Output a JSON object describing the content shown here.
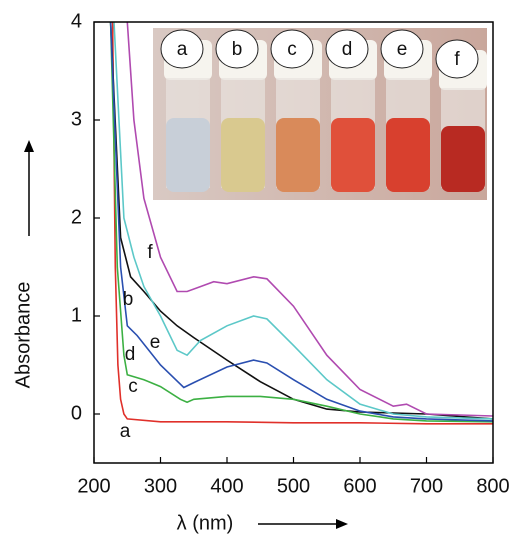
{
  "chart_data": {
    "type": "line",
    "x_label": "λ (nm)",
    "y_label": "Absorbance",
    "xlim": [
      200,
      800
    ],
    "xticks": [
      200,
      300,
      400,
      500,
      600,
      700,
      800
    ],
    "ylim": [
      -0.5,
      4
    ],
    "yticks": [
      0,
      1,
      2,
      3,
      4
    ],
    "series": [
      {
        "name": "a",
        "color": "#e0302a",
        "x": [
          228,
          232,
          236,
          240,
          245,
          250,
          300,
          400,
          500,
          600,
          700,
          800
        ],
        "values": [
          4,
          1.5,
          0.5,
          0.15,
          0,
          -0.05,
          -0.08,
          -0.08,
          -0.09,
          -0.09,
          -0.1,
          -0.1
        ]
      },
      {
        "name": "b",
        "color": "#111111",
        "x": [
          225,
          240,
          255,
          275,
          300,
          325,
          350,
          400,
          450,
          500,
          550,
          600,
          700,
          800
        ],
        "values": [
          4,
          1.8,
          1.4,
          1.25,
          1.05,
          0.9,
          0.78,
          0.55,
          0.33,
          0.15,
          0.05,
          0.02,
          0,
          -0.05
        ]
      },
      {
        "name": "c",
        "color": "#3cb043",
        "x": [
          225,
          235,
          245,
          250,
          275,
          300,
          330,
          340,
          350,
          400,
          450,
          500,
          550,
          600,
          650,
          700,
          800
        ],
        "values": [
          4,
          1.5,
          0.6,
          0.4,
          0.35,
          0.28,
          0.15,
          0.12,
          0.15,
          0.18,
          0.18,
          0.15,
          0.08,
          0,
          -0.05,
          -0.07,
          -0.08
        ]
      },
      {
        "name": "d",
        "color": "#2a4fb0",
        "x": [
          225,
          240,
          250,
          265,
          300,
          335,
          350,
          400,
          440,
          460,
          500,
          550,
          600,
          650,
          700,
          800
        ],
        "values": [
          4,
          1.5,
          0.9,
          0.8,
          0.5,
          0.27,
          0.32,
          0.48,
          0.55,
          0.52,
          0.35,
          0.15,
          0.03,
          -0.03,
          -0.05,
          -0.07
        ]
      },
      {
        "name": "e",
        "color": "#5cc8c8",
        "x": [
          230,
          245,
          260,
          275,
          300,
          325,
          340,
          360,
          400,
          440,
          460,
          500,
          550,
          600,
          650,
          700,
          800
        ],
        "values": [
          4,
          2,
          1.6,
          1.3,
          1.0,
          0.65,
          0.6,
          0.75,
          0.9,
          1.0,
          0.97,
          0.7,
          0.35,
          0.1,
          0,
          -0.03,
          -0.05
        ]
      },
      {
        "name": "f",
        "color": "#b04ab0",
        "x": [
          250,
          260,
          275,
          300,
          325,
          340,
          360,
          380,
          400,
          440,
          460,
          500,
          550,
          600,
          650,
          670,
          700,
          800
        ],
        "values": [
          4,
          3.0,
          2.2,
          1.6,
          1.25,
          1.25,
          1.3,
          1.35,
          1.33,
          1.4,
          1.38,
          1.1,
          0.6,
          0.25,
          0.08,
          0.1,
          0,
          -0.02
        ]
      }
    ],
    "inset_labels": [
      "a",
      "b",
      "c",
      "d",
      "e",
      "f"
    ]
  }
}
